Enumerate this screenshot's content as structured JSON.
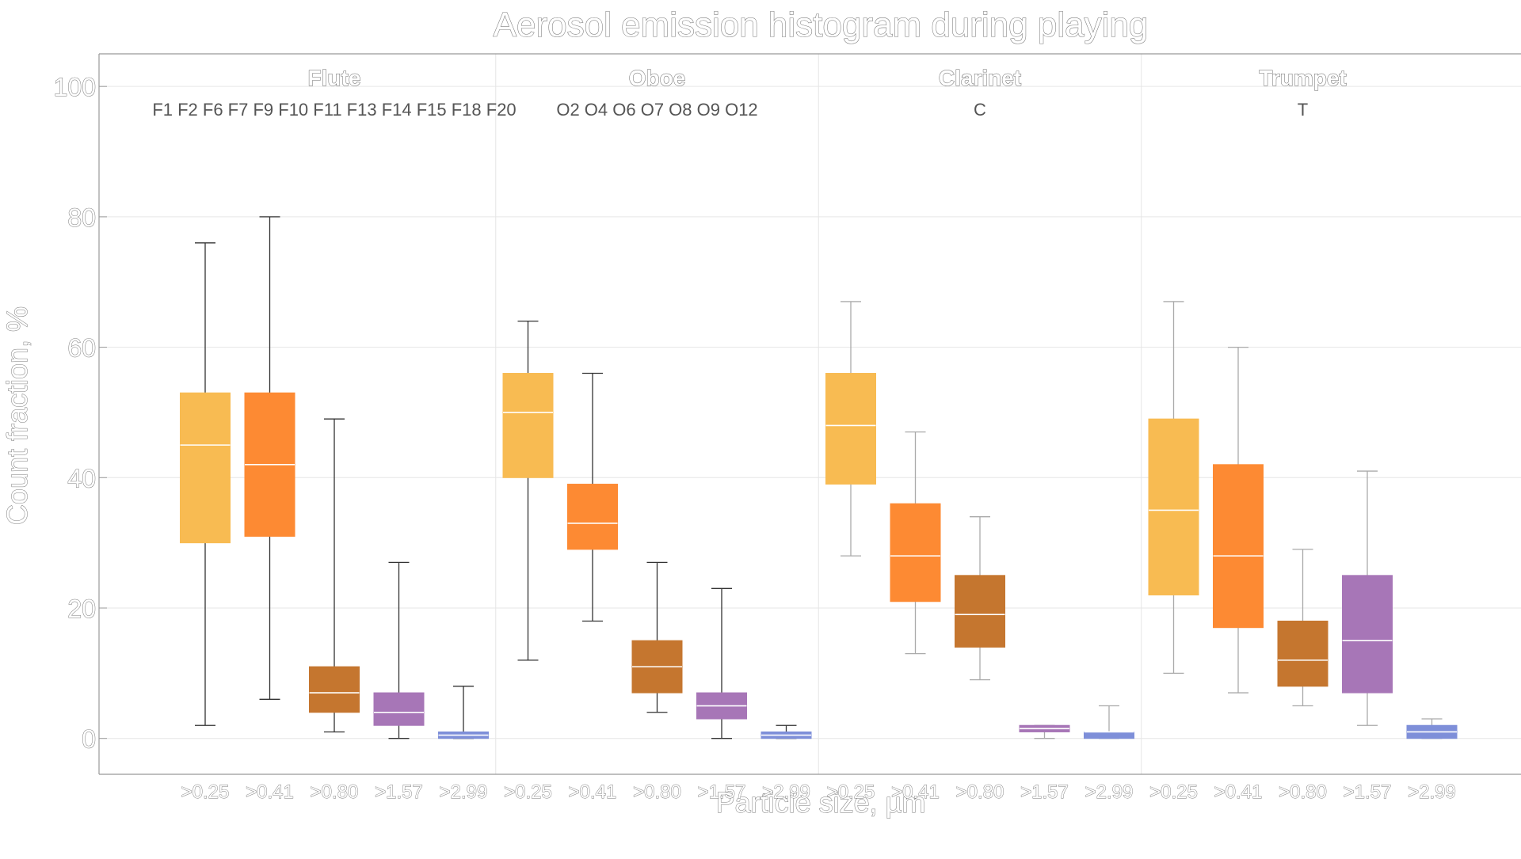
{
  "chart_data": {
    "type": "boxplot",
    "title": "Aerosol emission histogram during playing",
    "xlabel": "Particle size,  µm",
    "ylabel": "Count  fraction,  %",
    "ylim": [
      -5.5,
      105
    ],
    "yticks": [
      "0",
      "20",
      "40",
      "60",
      "80",
      "100"
    ],
    "grid": true,
    "categories": [
      ">0.25",
      ">0.41",
      ">0.80",
      ">1.57",
      ">2.99"
    ],
    "category_colors": [
      "#f8bb52",
      "#fd8a33",
      "#c5762f",
      "#a776b7",
      "#7e8fd9"
    ],
    "groups": [
      {
        "name": "Flute",
        "subjects": "F1 F2 F6 F7 F9 F10 F11 F13 F14 F15 F18 F20",
        "boxes": [
          {
            "category": ">0.25",
            "min": 2,
            "q1": 30,
            "median": 45,
            "q3": 53,
            "max": 76
          },
          {
            "category": ">0.41",
            "min": 6,
            "q1": 31,
            "median": 42,
            "q3": 53,
            "max": 80
          },
          {
            "category": ">0.80",
            "min": 1,
            "q1": 4,
            "median": 7,
            "q3": 11,
            "max": 49
          },
          {
            "category": ">1.57",
            "min": 0,
            "q1": 2,
            "median": 4,
            "q3": 7,
            "max": 27
          },
          {
            "category": ">2.99",
            "min": 0,
            "q1": 0,
            "median": 0.5,
            "q3": 1,
            "max": 8
          }
        ]
      },
      {
        "name": "Oboe",
        "subjects": "O2 O4 O6 O7 O8 O9 O12",
        "boxes": [
          {
            "category": ">0.25",
            "min": 12,
            "q1": 40,
            "median": 50,
            "q3": 56,
            "max": 64
          },
          {
            "category": ">0.41",
            "min": 18,
            "q1": 29,
            "median": 33,
            "q3": 39,
            "max": 56
          },
          {
            "category": ">0.80",
            "min": 4,
            "q1": 7,
            "median": 11,
            "q3": 15,
            "max": 27
          },
          {
            "category": ">1.57",
            "min": 0,
            "q1": 3,
            "median": 5,
            "q3": 7,
            "max": 23
          },
          {
            "category": ">2.99",
            "min": 0,
            "q1": 0,
            "median": 0.5,
            "q3": 1,
            "max": 2
          }
        ]
      },
      {
        "name": "Clarinet",
        "subjects": "C",
        "boxes": [
          {
            "category": ">0.25",
            "min": 28,
            "q1": 39,
            "median": 48,
            "q3": 56,
            "max": 67
          },
          {
            "category": ">0.41",
            "min": 13,
            "q1": 21,
            "median": 28,
            "q3": 36,
            "max": 47
          },
          {
            "category": ">0.80",
            "min": 9,
            "q1": 14,
            "median": 19,
            "q3": 25,
            "max": 34
          },
          {
            "category": ">1.57",
            "min": 0,
            "q1": 1,
            "median": 1.5,
            "q3": 2,
            "max": 2
          },
          {
            "category": ">2.99",
            "min": 0,
            "q1": 0,
            "median": 1,
            "q3": 1,
            "max": 5
          }
        ]
      },
      {
        "name": "Trumpet",
        "subjects": "T",
        "boxes": [
          {
            "category": ">0.25",
            "min": 10,
            "q1": 22,
            "median": 35,
            "q3": 49,
            "max": 67
          },
          {
            "category": ">0.41",
            "min": 7,
            "q1": 17,
            "median": 28,
            "q3": 42,
            "max": 60
          },
          {
            "category": ">0.80",
            "min": 5,
            "q1": 8,
            "median": 12,
            "q3": 18,
            "max": 29
          },
          {
            "category": ">1.57",
            "min": 2,
            "q1": 7,
            "median": 15,
            "q3": 25,
            "max": 41
          },
          {
            "category": ">2.99",
            "min": 0,
            "q1": 0,
            "median": 1,
            "q3": 2,
            "max": 3
          }
        ]
      }
    ]
  }
}
